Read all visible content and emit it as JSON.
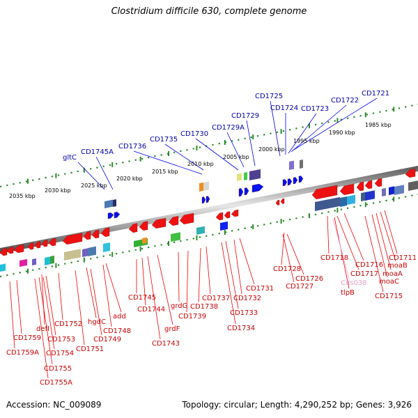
{
  "title": "Clostridium difficile 630, complete genome",
  "footer": {
    "accession": "Accession: NC_009089",
    "summary": "Topology: circular; Length: 4,290,252 bp; Genes: 3,926"
  },
  "colors": {
    "backbone": "#8a8a8a",
    "ruler": "#2a8a2a",
    "forward_gene": "#0000ee",
    "reverse_gene": "#ee0000",
    "forward_label": "#0000aa",
    "reverse_label": "#cc0000",
    "pseudo_label": "#e8a0c8"
  },
  "scale_labels": [
    "1985 kbp",
    "1990 kbp",
    "1995 kbp",
    "2000 kbp",
    "2005 kbp",
    "2010 kbp",
    "2015 kbp",
    "2020 kbp",
    "2025 kbp",
    "2030 kbp",
    "2035 kbp"
  ],
  "forward_labels": [
    "CD1721",
    "CD1722",
    "CD1723",
    "CD1724",
    "CD1725",
    "CD1729",
    "CD1729A",
    "CD1730",
    "CD1735",
    "CD1736",
    "CD1745A",
    "gltC"
  ],
  "reverse_labels": [
    "CD1711",
    "moaB",
    "moaA",
    "moaC",
    "CD1715",
    "CD1716",
    "CD1717",
    "CD1718",
    "tlpB",
    "Cds038",
    "CD1726",
    "CD1727",
    "CD1728",
    "CD1731",
    "CD1732",
    "CD1733",
    "CD1734",
    "CD1737",
    "CD1738",
    "CD1739",
    "grdG",
    "grdF",
    "CD1743",
    "CD1744",
    "CD1745",
    "add",
    "CD1748",
    "hgdC",
    "CD1749",
    "CD1751",
    "CD1752",
    "defI",
    "CD1753",
    "CD1754",
    "CD1755",
    "CD1755A",
    "CD1759",
    "CD1759A"
  ]
}
